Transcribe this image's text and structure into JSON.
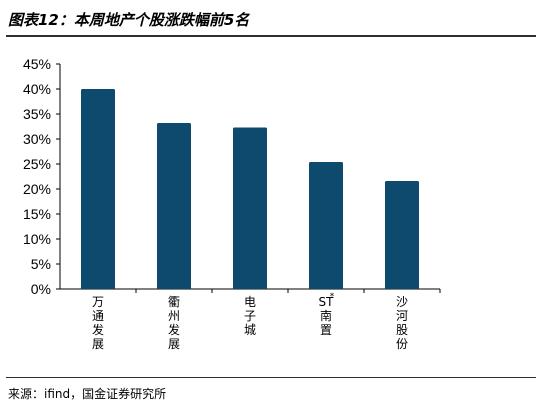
{
  "title": "图表12：本周地产个股涨跌幅前5名",
  "source": "来源：ifind，国金证券研究所",
  "chart_data": {
    "type": "bar",
    "categories": [
      "万通发展",
      "衢州发展",
      "电子城",
      "*ST南置",
      "沙河股份"
    ],
    "values": [
      40.0,
      33.2,
      32.3,
      25.4,
      21.6
    ],
    "ylim": [
      0,
      45
    ],
    "yticks": [
      "0%",
      "5%",
      "10%",
      "15%",
      "20%",
      "25%",
      "30%",
      "35%",
      "40%",
      "45%"
    ],
    "bar_color": "#0d4a6e",
    "grid": false
  }
}
